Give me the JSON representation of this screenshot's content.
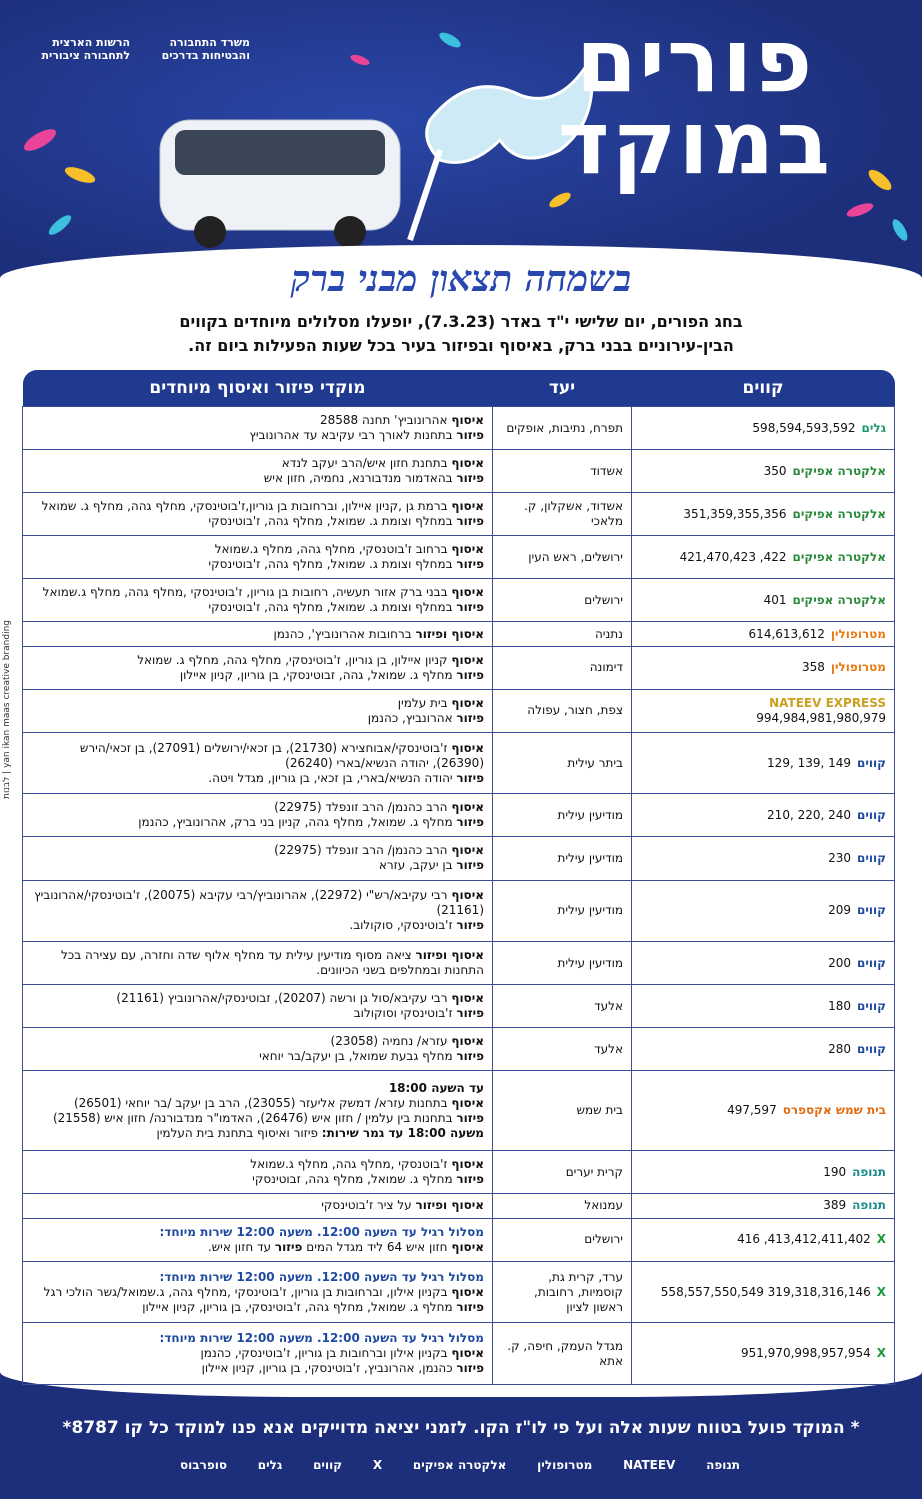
{
  "header": {
    "title_line1": "פורים",
    "title_line2": "במוקד",
    "logo_authority": "הרשות הארצית לתחבורה ציבורית",
    "logo_ministry": "משרד התחבורה והבטיחות בדרכים",
    "subtitle": "בשמחה תצאון מבני ברק",
    "intro_line1": "בחג הפורים, יום שלישי י\"ד באדר (7.3.23), יופעלו מסלולים מיוחדים בקווים",
    "intro_line2": "הבין-עירוניים בבני ברק, באיסוף ובפיזור בעיר בכל שעות הפעילות ביום זה."
  },
  "table": {
    "headers": [
      "קווים",
      "יעד",
      "מוקדי פיזור ואיסוף מיוחדים"
    ],
    "rows": [
      {
        "operator": "גלים",
        "operator_color": "#1a9a6a",
        "lines": "598,594,593,592",
        "destination": "תפרח, נתיבות, אופקים",
        "details": [
          [
            {
              "text": "איסוף",
              "bold": true
            },
            {
              "text": " אהרונוביץ' תחנה 28588"
            }
          ],
          [
            {
              "text": "פיזור",
              "bold": true
            },
            {
              "text": " בתחנות לאורך רבי עקיבא עד אהרונוביץ"
            }
          ]
        ]
      },
      {
        "operator": "אלקטרה אפיקים",
        "operator_color": "#2a8a3a",
        "lines": "350",
        "destination": "אשדוד",
        "details": [
          [
            {
              "text": "איסוף",
              "bold": true
            },
            {
              "text": " בתחנת חזון איש/הרב יעקב לנדא"
            }
          ],
          [
            {
              "text": "פיזור",
              "bold": true
            },
            {
              "text": " בהאדמור מנדבורנא, נחמיה, חזון איש"
            }
          ]
        ]
      },
      {
        "operator": "אלקטרה אפיקים",
        "operator_color": "#2a8a3a",
        "lines": "351,359,355,356",
        "destination": "אשדוד, אשקלון, ק. מלאכי",
        "details": [
          [
            {
              "text": "איסוף",
              "bold": true
            },
            {
              "text": " ברמת גן ,קניון איילון, וברחובות בן גוריון,ז'בוטינסקי, מחלף גהה, מחלף ג. שמואל"
            }
          ],
          [
            {
              "text": "פיזור",
              "bold": true
            },
            {
              "text": " במחלף וצומת ג. שמואל, מחלף גהה, ז'בוטינסקי"
            }
          ]
        ]
      },
      {
        "operator": "אלקטרה אפיקים",
        "operator_color": "#2a8a3a",
        "lines": "421,470,423 ,422",
        "destination": "ירושלים, ראש העין",
        "details": [
          [
            {
              "text": "איסוף",
              "bold": true
            },
            {
              "text": " ברחוב ז'בוטנסקי, מחלף גהה, מחלף ג.שמואל"
            }
          ],
          [
            {
              "text": "פיזור",
              "bold": true
            },
            {
              "text": " במחלף וצומת ג. שמואל, מחלף גהה, ז'בוטינסקי"
            }
          ]
        ]
      },
      {
        "operator": "אלקטרה אפיקים",
        "operator_color": "#2a8a3a",
        "lines": "401",
        "destination": "ירושלים",
        "details": [
          [
            {
              "text": "איסוף",
              "bold": true
            },
            {
              "text": " בבני ברק אזור תעשיה, רחובות בן גוריון, ז'בוטינסקי ,מחלף גהה, מחלף ג.שמואל"
            }
          ],
          [
            {
              "text": "פיזור",
              "bold": true
            },
            {
              "text": " במחלף וצומת ג. שמואל, מחלף גהה, ז'בוטינסקי"
            }
          ]
        ]
      },
      {
        "operator": "מטרופולין",
        "operator_color": "#e87a10",
        "lines": "614,613,612",
        "destination": "נתניה",
        "details": [
          [
            {
              "text": "איסוף ופיזור",
              "bold": true
            },
            {
              "text": " ברחובות אהרונוביץ', כהנמן"
            }
          ]
        ]
      },
      {
        "operator": "מטרופולין",
        "operator_color": "#e87a10",
        "lines": "358",
        "destination": "דימונה",
        "details": [
          [
            {
              "text": "איסוף",
              "bold": true
            },
            {
              "text": " קניון איילון, בן גוריון, ז'בוטינסקי, מחלף גהה, מחלף ג. שמואל"
            }
          ],
          [
            {
              "text": "פיזור",
              "bold": true
            },
            {
              "text": " מחלף ג. שמואל, גהה, זבוטינסקי, בן גוריון, קניון איילון"
            }
          ]
        ]
      },
      {
        "operator": "NATEEV EXPRESS",
        "operator_color": "#c9a020",
        "lines": "994,984,981,980,979",
        "destination": "צפת, חצור, עפולה",
        "details": [
          [
            {
              "text": "איסוף",
              "bold": true
            },
            {
              "text": " בית עלמין"
            }
          ],
          [
            {
              "text": "פיזור",
              "bold": true
            },
            {
              "text": " אהרונביץ, כהנמן"
            }
          ]
        ]
      },
      {
        "operator": "קווים",
        "operator_color": "#1f4aa0",
        "lines": "129, 139, 149",
        "destination": "ביתר עילית",
        "details": [
          [
            {
              "text": "איסוף",
              "bold": true
            },
            {
              "text": " ז'בוטינסקי/אבוחצירא (21730), בן זכאי/ירושלים (27091), בן זכאי/הירש (26390), יהודה הנשיא/בארי (26240)"
            }
          ],
          [
            {
              "text": "פיזור",
              "bold": true
            },
            {
              "text": " יהודה הנשיא/בארי, בן זכאי, בן גוריון, מגדל ויטה."
            }
          ]
        ]
      },
      {
        "operator": "קווים",
        "operator_color": "#1f4aa0",
        "lines": "210, 220, 240",
        "destination": "מודיעין עילית",
        "details": [
          [
            {
              "text": "איסוף",
              "bold": true
            },
            {
              "text": " הרב כהנמן/ הרב זונפלד (22975)"
            }
          ],
          [
            {
              "text": "פיזור",
              "bold": true
            },
            {
              "text": " מחלף ג. שמואל, מחלף גהה, קניון בני ברק, אהרונוביץ, כהנמן"
            }
          ]
        ]
      },
      {
        "operator": "קווים",
        "operator_color": "#1f4aa0",
        "lines": "230",
        "destination": "מודיעין עילית",
        "details": [
          [
            {
              "text": "איסוף",
              "bold": true
            },
            {
              "text": " הרב כהנמן/ הרב זונפלד (22975)"
            }
          ],
          [
            {
              "text": "פיזור",
              "bold": true
            },
            {
              "text": " בן יעקב, עזרא"
            }
          ]
        ]
      },
      {
        "operator": "קווים",
        "operator_color": "#1f4aa0",
        "lines": "209",
        "destination": "מודיעין עילית",
        "details": [
          [
            {
              "text": "איסוף",
              "bold": true
            },
            {
              "text": " רבי עקיבא/רש\"י (22972), אהרונוביץ/רבי עקיבא (20075), ז'בוטינסקי/אהרונוביץ (21161)"
            }
          ],
          [
            {
              "text": "פיזור",
              "bold": true
            },
            {
              "text": " ז'בוטינסקי, סוקולוב."
            }
          ]
        ]
      },
      {
        "operator": "קווים",
        "operator_color": "#1f4aa0",
        "lines": "200",
        "destination": "מודיעין עילית",
        "details": [
          [
            {
              "text": "איסוף ופיזור",
              "bold": true
            },
            {
              "text": " ציאה מסוף מודיעין עילית עד מחלף אלוף שדה וחזרה, עם עצירה בכל התחנות ובמחלפים בשני הכיוונים."
            }
          ]
        ]
      },
      {
        "operator": "קווים",
        "operator_color": "#1f4aa0",
        "lines": "180",
        "destination": "אלעד",
        "details": [
          [
            {
              "text": "איסוף",
              "bold": true
            },
            {
              "text": " רבי עקיבא/סול גן ורשה (20207), זבוטינסקי/אהרונוביץ (21161)"
            }
          ],
          [
            {
              "text": "פיזור",
              "bold": true
            },
            {
              "text": " ז'בוטינסקי וסוקולוב"
            }
          ]
        ]
      },
      {
        "operator": "קווים",
        "operator_color": "#1f4aa0",
        "lines": "280",
        "destination": "אלעד",
        "details": [
          [
            {
              "text": "איסוף",
              "bold": true
            },
            {
              "text": " עזרא/ נחמיה (23058)"
            }
          ],
          [
            {
              "text": "פיזור",
              "bold": true
            },
            {
              "text": " מחלף גבעת שמואל, בן יעקב/בר יוחאי"
            }
          ]
        ]
      },
      {
        "operator": "בית שמש אקספרס",
        "operator_color": "#e06a10",
        "lines": "497,597",
        "destination": "בית שמש",
        "details": [
          [
            {
              "text": "עד השעה 18:00",
              "bold": true
            }
          ],
          [
            {
              "text": "איסוף",
              "bold": true
            },
            {
              "text": " בתחנות עזרא/ דמשק אליעזר (23055), הרב בן יעקב /בר יוחאי (26501)"
            }
          ],
          [
            {
              "text": "פיזור",
              "bold": true
            },
            {
              "text": " בתחנות בין עלמין / חזון איש (26476), האדמו\"ר מנדבורנה/ חזון איש (21558)"
            }
          ],
          [
            {
              "text": "משעה 18:00 עד גמר שירות:",
              "bold": true
            },
            {
              "text": " פיזור ואיסוף בתחנת בית העלמין"
            }
          ]
        ]
      },
      {
        "operator": "תנופה",
        "operator_color": "#1a8a8a",
        "lines": "190",
        "destination": "קרית יערים",
        "details": [
          [
            {
              "text": "איסוף",
              "bold": true
            },
            {
              "text": " ז'בוטנסקי ,מחלף גהה, מחלף ג.שמואל"
            }
          ],
          [
            {
              "text": "פיזור",
              "bold": true
            },
            {
              "text": " מחלף ג. שמואל, מחלף גהה, זבוטינסקי"
            }
          ]
        ]
      },
      {
        "operator": "תנופה",
        "operator_color": "#1a8a8a",
        "lines": "389",
        "destination": "עמנואל",
        "details": [
          [
            {
              "text": "איסוף ופיזור",
              "bold": true
            },
            {
              "text": " על ציר ז'בוטינסקי"
            }
          ]
        ]
      },
      {
        "operator": "X",
        "operator_color": "#1a9a3a",
        "lines": "416 ,413,412,411,402",
        "destination": "ירושלים",
        "details": [
          [
            {
              "text": "מסלול רגיל עד השעה 12:00. משעה 12:00 שירות מיוחד:",
              "bold": true,
              "color": "#1f4aa0"
            }
          ],
          [
            {
              "text": "איסוף",
              "bold": true
            },
            {
              "text": " חזון איש 64 ליד מגדל המים "
            },
            {
              "text": "פיזור",
              "bold": true
            },
            {
              "text": " עד חזון איש."
            }
          ]
        ]
      },
      {
        "operator": "X",
        "operator_color": "#1a9a3a",
        "lines": "558,557,550,549 319,318,316,146",
        "destination": "ערד, קרית גת, קוסמיות, רחובות, ראשון לציון",
        "details": [
          [
            {
              "text": "מסלול רגיל עד השעה 12:00. משעה 12:00 שירות מיוחד:",
              "bold": true,
              "color": "#1f4aa0"
            }
          ],
          [
            {
              "text": "איסוף",
              "bold": true
            },
            {
              "text": " בקניון אילון, וברחובות בן גוריון, ז'בוטינסקי ,מחלף גהה, ג.שמואל/גשר הולכי רגל"
            }
          ],
          [
            {
              "text": "פיזור",
              "bold": true
            },
            {
              "text": " מחלף ג. שמואל, מחלף גהה, ז'בוטינסקי, בן גוריון, קניון איילון"
            }
          ]
        ]
      },
      {
        "operator": "X",
        "operator_color": "#1a9a3a",
        "lines": "951,970,998,957,954",
        "destination": "מגדל העמק, חיפה, ק. אתא",
        "details": [
          [
            {
              "text": "מסלול רגיל עד השעה 12:00. משעה 12:00 שירות מיוחד:",
              "bold": true,
              "color": "#1f4aa0"
            }
          ],
          [
            {
              "text": "איסוף",
              "bold": true
            },
            {
              "text": " בקניון אילון וברחובות בן גוריון, ז'בוטינסקי, כהנמן"
            }
          ],
          [
            {
              "text": "פיזור",
              "bold": true
            },
            {
              "text": " כהנמן, אהרונביץ, ז'בוטינסקי, בן גוריון, קניון איילון"
            }
          ]
        ]
      }
    ]
  },
  "footer": {
    "note": "* המוקד פועל בטווח שעות אלה ועל פי לו\"ז הקו. לזמני יציאה מדוייקים אנא פנו למוקד כל קו 8787*",
    "logos": [
      "תנופה",
      "NATEEV",
      "מטרופולין",
      "אלקטרה אפיקים",
      "X",
      "קווים",
      "גלים",
      "סופרבוס"
    ]
  },
  "credit": "yan ikan maas creative branding | לבנות"
}
